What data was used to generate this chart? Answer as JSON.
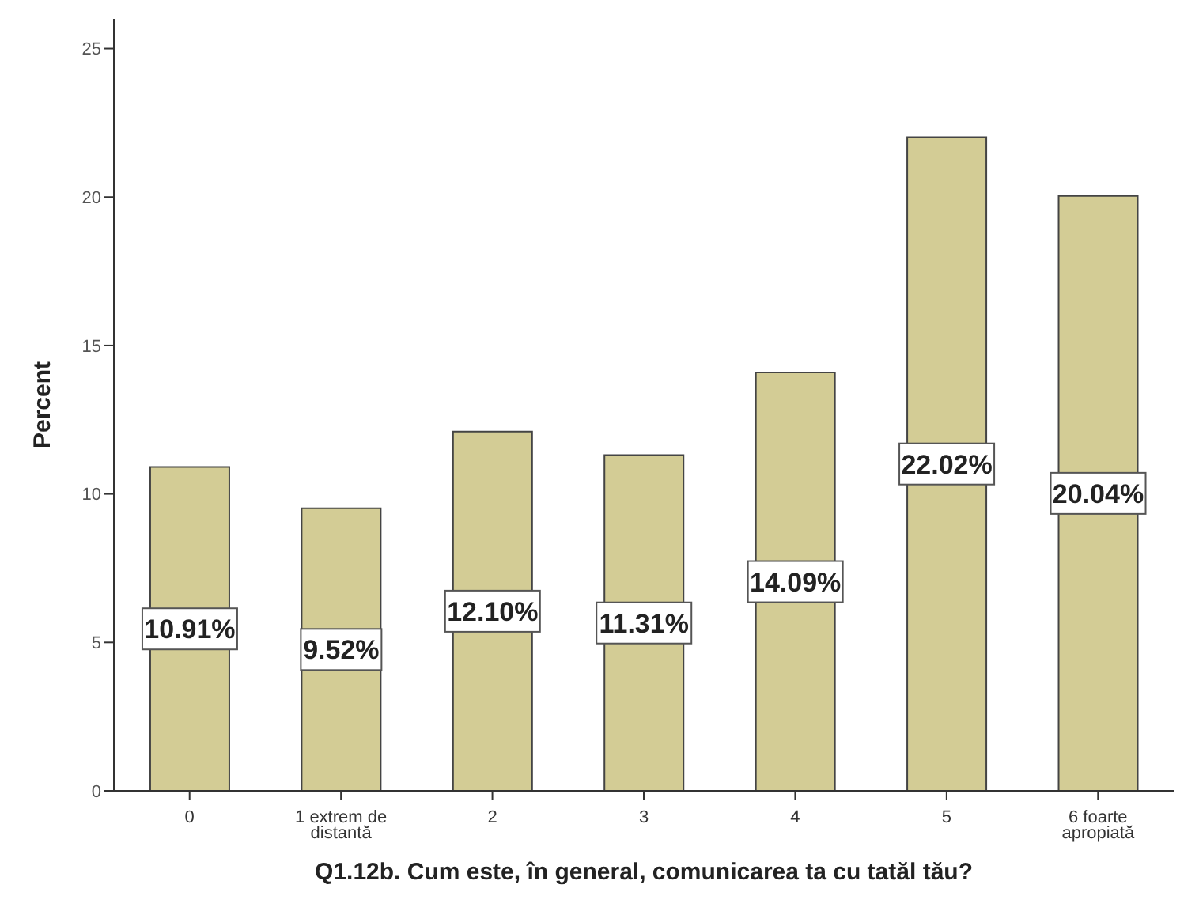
{
  "chart_data": {
    "type": "bar",
    "xlabel": "Q1.12b. Cum este, în general, comunicarea ta cu tatăl tău?",
    "ylabel": "Percent",
    "categories": [
      "0",
      "1 extrem de distantă",
      "2",
      "3",
      "4",
      "5",
      "6 foarte apropiată"
    ],
    "values": [
      10.91,
      9.52,
      12.1,
      11.31,
      14.09,
      22.02,
      20.04
    ],
    "value_labels": [
      "10.91%",
      "9.52%",
      "12.10%",
      "11.31%",
      "14.09%",
      "22.02%",
      "20.04%"
    ],
    "color": "#d3cc95",
    "ylim": [
      0,
      26
    ],
    "yticks": [
      0,
      5,
      10,
      15,
      20,
      25
    ],
    "grid": false,
    "legend": false
  }
}
